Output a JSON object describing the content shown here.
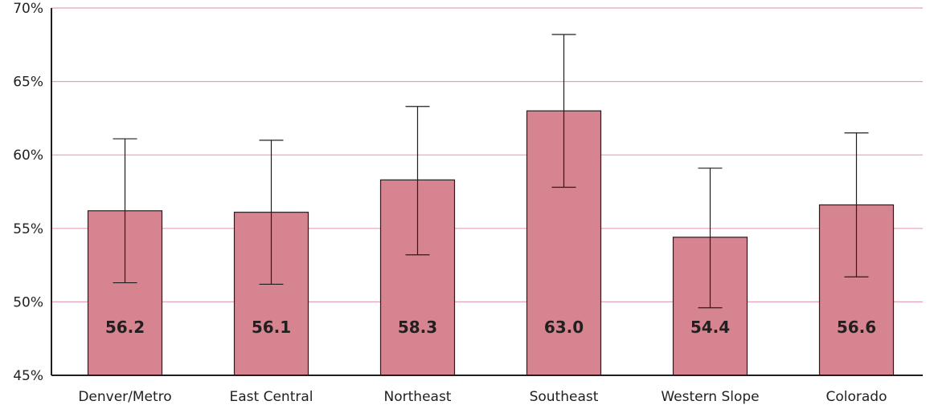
{
  "chart_data": {
    "type": "bar",
    "title": "",
    "xlabel": "",
    "ylabel": "",
    "categories": [
      "Denver/Metro",
      "East Central",
      "Northeast",
      "Southeast",
      "Western Slope",
      "Colorado"
    ],
    "values": [
      56.2,
      56.1,
      58.3,
      63.0,
      54.4,
      56.6
    ],
    "value_labels": [
      "56.2",
      "56.1",
      "58.3",
      "63.0",
      "54.4",
      "56.6"
    ],
    "error_low": [
      51.3,
      51.2,
      53.2,
      57.8,
      49.6,
      51.7
    ],
    "error_high": [
      61.1,
      61.0,
      63.3,
      68.2,
      59.1,
      61.5
    ],
    "ylim": [
      45,
      70
    ],
    "yticks": [
      45,
      50,
      55,
      60,
      65,
      70
    ],
    "ytick_labels": [
      "45%",
      "50%",
      "55%",
      "60%",
      "65%",
      "70%"
    ],
    "grid": true,
    "legend": "none"
  },
  "colors": {
    "bar_fill": "#d6848f",
    "bar_stroke": "#231f20",
    "grid": "#e3a3b4",
    "axis": "#231f20",
    "text": "#231f20"
  }
}
